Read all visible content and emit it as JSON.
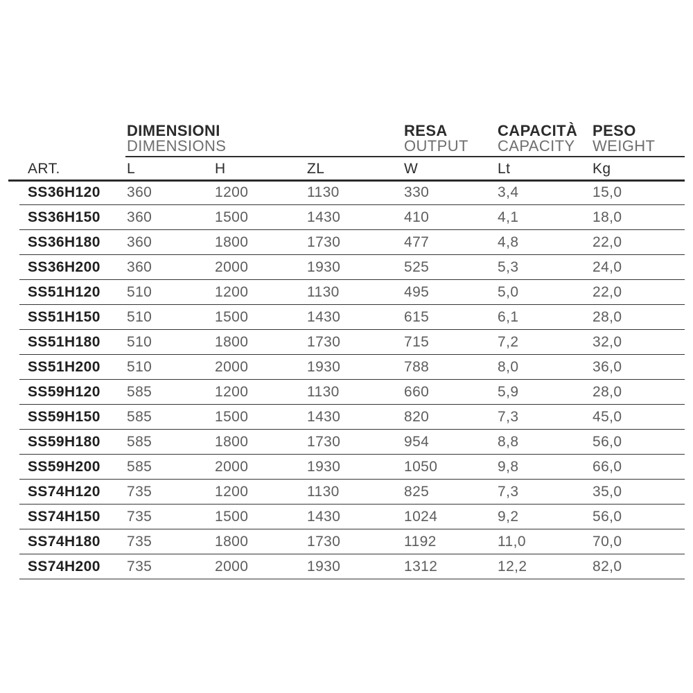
{
  "table": {
    "group_headers": [
      {
        "it": "DIMENSIONI",
        "en": "DIMENSIONS"
      },
      {
        "it": "RESA",
        "en": "OUTPUT"
      },
      {
        "it": "CAPACITÀ",
        "en": "CAPACITY"
      },
      {
        "it": "PESO",
        "en": "WEIGHT"
      }
    ],
    "columns": [
      "ART.",
      "L",
      "H",
      "ZL",
      "W",
      "Lt",
      "Kg"
    ],
    "rows": [
      [
        "SS36H120",
        "360",
        "1200",
        "1130",
        "330",
        "3,4",
        "15,0"
      ],
      [
        "SS36H150",
        "360",
        "1500",
        "1430",
        "410",
        "4,1",
        "18,0"
      ],
      [
        "SS36H180",
        "360",
        "1800",
        "1730",
        "477",
        "4,8",
        "22,0"
      ],
      [
        "SS36H200",
        "360",
        "2000",
        "1930",
        "525",
        "5,3",
        "24,0"
      ],
      [
        "SS51H120",
        "510",
        "1200",
        "1130",
        "495",
        "5,0",
        "22,0"
      ],
      [
        "SS51H150",
        "510",
        "1500",
        "1430",
        "615",
        "6,1",
        "28,0"
      ],
      [
        "SS51H180",
        "510",
        "1800",
        "1730",
        "715",
        "7,2",
        "32,0"
      ],
      [
        "SS51H200",
        "510",
        "2000",
        "1930",
        "788",
        "8,0",
        "36,0"
      ],
      [
        "SS59H120",
        "585",
        "1200",
        "1130",
        "660",
        "5,9",
        "28,0"
      ],
      [
        "SS59H150",
        "585",
        "1500",
        "1430",
        "820",
        "7,3",
        "45,0"
      ],
      [
        "SS59H180",
        "585",
        "1800",
        "1730",
        "954",
        "8,8",
        "56,0"
      ],
      [
        "SS59H200",
        "585",
        "2000",
        "1930",
        "1050",
        "9,8",
        "66,0"
      ],
      [
        "SS74H120",
        "735",
        "1200",
        "1130",
        "825",
        "7,3",
        "35,0"
      ],
      [
        "SS74H150",
        "735",
        "1500",
        "1430",
        "1024",
        "9,2",
        "56,0"
      ],
      [
        "SS74H180",
        "735",
        "1800",
        "1730",
        "1192",
        "11,0",
        "70,0"
      ],
      [
        "SS74H200",
        "735",
        "2000",
        "1930",
        "1312",
        "12,2",
        "82,0"
      ]
    ]
  },
  "colors": {
    "text_dark": "#1f1f1f",
    "text_header": "#2d2d2d",
    "text_data": "#5d5d5d",
    "text_secondary": "#6e6e6e",
    "line": "#2e2e2e",
    "background": "#ffffff"
  }
}
